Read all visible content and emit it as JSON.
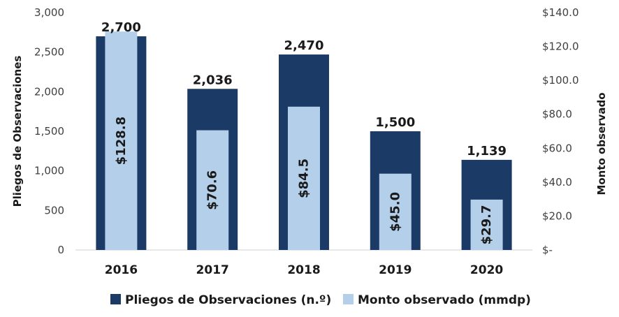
{
  "chart_data": {
    "type": "bar",
    "categories": [
      "2016",
      "2017",
      "2018",
      "2019",
      "2020"
    ],
    "series": [
      {
        "name": "Pliegos de Observaciones (n.º)",
        "axis": "left",
        "color": "#1b3a66",
        "values": [
          2700,
          2036,
          2470,
          1500,
          1139
        ],
        "labels": [
          "2,700",
          "2,036",
          "2,470",
          "1,500",
          "1,139"
        ]
      },
      {
        "name": "Monto observado (mmdp)",
        "axis": "right",
        "color": "#b4cfe9",
        "values": [
          128.8,
          70.6,
          84.5,
          45.0,
          29.7
        ],
        "labels": [
          "$128.8",
          "$70.6",
          "$84.5",
          "$45.0",
          "$29.7"
        ]
      }
    ],
    "ylabel": "Pliegos de Observaciones",
    "ylabel_right": "Monto observado",
    "ylim": [
      0,
      3000
    ],
    "ylim_right": [
      0,
      140
    ],
    "yticks": [
      0,
      500,
      1000,
      1500,
      2000,
      2500,
      3000
    ],
    "yticks_labels": [
      "0",
      "500",
      "1,000",
      "1,500",
      "2,000",
      "2,500",
      "3,000"
    ],
    "yticks_right": [
      0,
      20,
      40,
      60,
      80,
      100,
      120,
      140
    ],
    "yticks_right_labels": [
      "$-",
      "$20.0",
      "$40.0",
      "$60.0",
      "$80.0",
      "$100.0",
      "$120.0",
      "$140.0"
    ],
    "grid": false,
    "legend_position": "bottom"
  }
}
